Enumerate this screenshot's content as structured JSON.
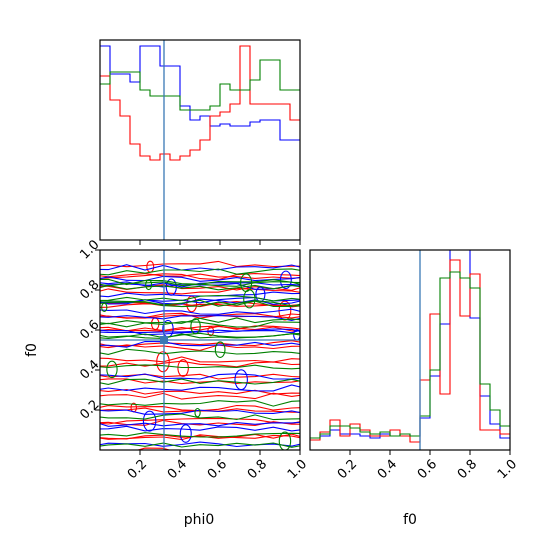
{
  "chart_data": [
    {
      "type": "corner-plot",
      "parameters": [
        "phi0",
        "f0"
      ],
      "truths": {
        "phi0": 0.32,
        "f0": 0.55
      },
      "colors": {
        "blue": "#0000ff",
        "red": "#ff0000",
        "green": "#008000",
        "truth": "#3a78b5"
      },
      "panels": [
        {
          "type": "step-histogram",
          "parameter": "phi0",
          "xlim": [
            0,
            1
          ],
          "bin_edges": [
            0.0,
            0.05,
            0.1,
            0.15,
            0.2,
            0.25,
            0.3,
            0.35,
            0.4,
            0.45,
            0.5,
            0.55,
            0.6,
            0.65,
            0.7,
            0.75,
            0.8,
            0.85,
            0.9,
            0.95,
            1.0
          ],
          "series": [
            {
              "color": "blue",
              "values": [
                0.97,
                0.83,
                0.83,
                0.79,
                0.97,
                0.97,
                0.87,
                0.87,
                0.67,
                0.6,
                0.62,
                0.57,
                0.58,
                0.57,
                0.57,
                0.59,
                0.6,
                0.6,
                0.5,
                0.5
              ]
            },
            {
              "color": "red",
              "values": [
                0.82,
                0.7,
                0.62,
                0.48,
                0.42,
                0.4,
                0.43,
                0.4,
                0.42,
                0.45,
                0.5,
                0.62,
                0.64,
                0.68,
                0.97,
                0.68,
                0.68,
                0.68,
                0.68,
                0.6
              ]
            },
            {
              "color": "green",
              "values": [
                0.78,
                0.84,
                0.84,
                0.84,
                0.75,
                0.72,
                0.72,
                0.72,
                0.65,
                0.65,
                0.65,
                0.67,
                0.78,
                0.75,
                0.75,
                0.8,
                0.9,
                0.9,
                0.75,
                0.75
              ]
            }
          ]
        },
        {
          "type": "contour",
          "x": "phi0",
          "y": "f0",
          "xlim": [
            0,
            1
          ],
          "ylim": [
            0,
            1
          ],
          "xticks": [
            0.2,
            0.4,
            0.6,
            0.8,
            1.0
          ],
          "yticks": [
            0.2,
            0.4,
            0.6,
            0.8,
            1.0
          ],
          "xtick_labels": [
            "0.2",
            "0.4",
            "0.6",
            "0.8",
            "1.0"
          ],
          "ytick_labels": [
            "0.2",
            "0.4",
            "0.6",
            "0.8",
            "1.0"
          ],
          "xlabel": "phi0",
          "ylabel": "f0",
          "truth_marker": [
            0.32,
            0.55
          ],
          "contour_levels": [
            {
              "color": "red",
              "y": [
                0.03,
                0.1,
                0.17,
                0.24,
                0.32,
                0.41,
                0.47,
                0.57,
                0.64,
                0.7,
                0.76,
                0.84,
                0.9
              ]
            },
            {
              "color": "blue",
              "y": [
                0.07,
                0.16,
                0.34,
                0.56,
                0.63,
                0.72,
                0.78,
                0.82,
                0.87
              ]
            },
            {
              "color": "green",
              "y": [
                0.05,
                0.2,
                0.38,
                0.53,
                0.6,
                0.69,
                0.77,
                0.8,
                0.86
              ]
            }
          ]
        },
        {
          "type": "step-histogram",
          "parameter": "f0",
          "xlim": [
            0,
            1
          ],
          "ylim": [
            0,
            1
          ],
          "xticks": [
            0.2,
            0.4,
            0.6,
            0.8,
            1.0
          ],
          "xtick_labels": [
            "0.2",
            "0.4",
            "0.6",
            "0.8",
            "1.0"
          ],
          "xlabel": "f0",
          "bin_edges": [
            0.0,
            0.05,
            0.1,
            0.15,
            0.2,
            0.25,
            0.3,
            0.35,
            0.4,
            0.45,
            0.5,
            0.55,
            0.6,
            0.65,
            0.7,
            0.75,
            0.8,
            0.85,
            0.9,
            0.95,
            1.0
          ],
          "series": [
            {
              "color": "blue",
              "values": [
                0.06,
                0.07,
                0.1,
                0.08,
                0.08,
                0.07,
                0.06,
                0.08,
                0.07,
                0.08,
                0.07,
                0.16,
                0.37,
                0.63,
                1.0,
                1.0,
                0.66,
                0.27,
                0.13,
                0.06
              ]
            },
            {
              "color": "red",
              "values": [
                0.05,
                0.09,
                0.15,
                0.07,
                0.13,
                0.1,
                0.07,
                0.07,
                0.1,
                0.07,
                0.04,
                0.35,
                0.68,
                0.28,
                0.95,
                0.67,
                0.88,
                0.1,
                0.1,
                0.08
              ]
            },
            {
              "color": "green",
              "values": [
                0.06,
                0.08,
                0.12,
                0.12,
                0.11,
                0.09,
                0.08,
                0.09,
                0.07,
                0.08,
                0.07,
                0.17,
                0.4,
                0.86,
                0.89,
                0.86,
                0.81,
                0.33,
                0.2,
                0.12
              ]
            }
          ]
        }
      ]
    }
  ]
}
